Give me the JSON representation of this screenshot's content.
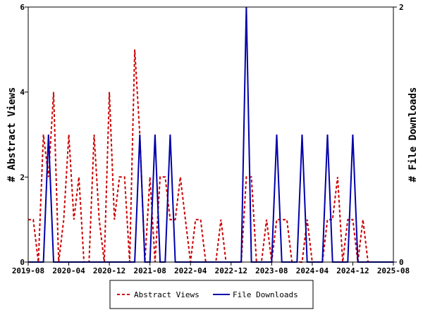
{
  "chart_data": {
    "type": "line",
    "title": "",
    "x_ticks": [
      "2019-08",
      "2020-04",
      "2020-12",
      "2021-08",
      "2022-04",
      "2022-12",
      "2023-08",
      "2024-04",
      "2024-12",
      "2025-08"
    ],
    "x_range": [
      "2019-08",
      "2025-08"
    ],
    "y_left": {
      "label": "# Abstract Views",
      "ticks": [
        "0",
        "2",
        "4",
        "6"
      ],
      "range": [
        0,
        6
      ]
    },
    "y_right": {
      "label": "# File Downloads",
      "ticks": [
        "0",
        "2"
      ],
      "range": [
        0,
        2
      ]
    },
    "grid": false,
    "legend": {
      "position": "bottom-center",
      "entries": [
        "Abstract Views",
        "File Downloads"
      ]
    },
    "colors": {
      "abstract_views": "#cc0000",
      "file_downloads": "#0000aa"
    },
    "series": [
      {
        "name": "Abstract Views",
        "axis": "left",
        "style": "dashed",
        "color": "#cc0000",
        "points": [
          [
            "2019-08",
            1
          ],
          [
            "2019-09",
            1
          ],
          [
            "2019-10",
            0
          ],
          [
            "2019-11",
            3
          ],
          [
            "2019-12",
            2
          ],
          [
            "2020-01",
            4
          ],
          [
            "2020-02",
            0
          ],
          [
            "2020-03",
            1
          ],
          [
            "2020-04",
            3
          ],
          [
            "2020-05",
            1
          ],
          [
            "2020-06",
            2
          ],
          [
            "2020-07",
            0
          ],
          [
            "2020-08",
            0
          ],
          [
            "2020-09",
            3
          ],
          [
            "2020-10",
            1
          ],
          [
            "2020-11",
            0
          ],
          [
            "2020-12",
            4
          ],
          [
            "2021-01",
            1
          ],
          [
            "2021-02",
            2
          ],
          [
            "2021-03",
            2
          ],
          [
            "2021-04",
            0
          ],
          [
            "2021-05",
            5
          ],
          [
            "2021-06",
            3
          ],
          [
            "2021-07",
            0
          ],
          [
            "2021-08",
            2
          ],
          [
            "2021-09",
            0
          ],
          [
            "2021-10",
            2
          ],
          [
            "2021-11",
            2
          ],
          [
            "2021-12",
            1
          ],
          [
            "2022-01",
            1
          ],
          [
            "2022-02",
            2
          ],
          [
            "2022-03",
            1
          ],
          [
            "2022-04",
            0
          ],
          [
            "2022-05",
            1
          ],
          [
            "2022-06",
            1
          ],
          [
            "2022-07",
            0
          ],
          [
            "2022-08",
            0
          ],
          [
            "2022-09",
            0
          ],
          [
            "2022-10",
            1
          ],
          [
            "2022-11",
            0
          ],
          [
            "2022-12",
            0
          ],
          [
            "2023-01",
            0
          ],
          [
            "2023-02",
            0
          ],
          [
            "2023-03",
            2
          ],
          [
            "2023-04",
            2
          ],
          [
            "2023-05",
            0
          ],
          [
            "2023-06",
            0
          ],
          [
            "2023-07",
            1
          ],
          [
            "2023-08",
            0
          ],
          [
            "2023-09",
            1
          ],
          [
            "2023-10",
            1
          ],
          [
            "2023-11",
            1
          ],
          [
            "2023-12",
            0
          ],
          [
            "2024-01",
            0
          ],
          [
            "2024-02",
            0
          ],
          [
            "2024-03",
            1
          ],
          [
            "2024-04",
            0
          ],
          [
            "2024-05",
            0
          ],
          [
            "2024-06",
            0
          ],
          [
            "2024-07",
            1
          ],
          [
            "2024-08",
            1
          ],
          [
            "2024-09",
            2
          ],
          [
            "2024-10",
            0
          ],
          [
            "2024-11",
            1
          ],
          [
            "2024-12",
            1
          ],
          [
            "2025-01",
            0
          ],
          [
            "2025-02",
            1
          ],
          [
            "2025-03",
            0
          ],
          [
            "2025-04",
            0
          ],
          [
            "2025-05",
            0
          ],
          [
            "2025-06",
            0
          ],
          [
            "2025-07",
            0
          ],
          [
            "2025-08",
            0
          ]
        ]
      },
      {
        "name": "File Downloads",
        "axis": "right",
        "style": "solid",
        "color": "#0000aa",
        "points": [
          [
            "2019-08",
            0
          ],
          [
            "2019-09",
            0
          ],
          [
            "2019-10",
            0
          ],
          [
            "2019-11",
            0
          ],
          [
            "2019-12",
            1
          ],
          [
            "2020-01",
            0
          ],
          [
            "2020-02",
            0
          ],
          [
            "2020-03",
            0
          ],
          [
            "2020-04",
            0
          ],
          [
            "2020-05",
            0
          ],
          [
            "2020-06",
            0
          ],
          [
            "2020-07",
            0
          ],
          [
            "2020-08",
            0
          ],
          [
            "2020-09",
            0
          ],
          [
            "2020-10",
            0
          ],
          [
            "2020-11",
            0
          ],
          [
            "2020-12",
            0
          ],
          [
            "2021-01",
            0
          ],
          [
            "2021-02",
            0
          ],
          [
            "2021-03",
            0
          ],
          [
            "2021-04",
            0
          ],
          [
            "2021-05",
            0
          ],
          [
            "2021-06",
            1
          ],
          [
            "2021-07",
            0
          ],
          [
            "2021-08",
            0
          ],
          [
            "2021-09",
            1
          ],
          [
            "2021-10",
            0
          ],
          [
            "2021-11",
            0
          ],
          [
            "2021-12",
            1
          ],
          [
            "2022-01",
            0
          ],
          [
            "2022-02",
            0
          ],
          [
            "2022-03",
            0
          ],
          [
            "2022-04",
            0
          ],
          [
            "2022-05",
            0
          ],
          [
            "2022-06",
            0
          ],
          [
            "2022-07",
            0
          ],
          [
            "2022-08",
            0
          ],
          [
            "2022-09",
            0
          ],
          [
            "2022-10",
            0
          ],
          [
            "2022-11",
            0
          ],
          [
            "2022-12",
            0
          ],
          [
            "2023-01",
            0
          ],
          [
            "2023-02",
            0
          ],
          [
            "2023-03",
            2
          ],
          [
            "2023-04",
            0
          ],
          [
            "2023-05",
            0
          ],
          [
            "2023-06",
            0
          ],
          [
            "2023-07",
            0
          ],
          [
            "2023-08",
            0
          ],
          [
            "2023-09",
            1
          ],
          [
            "2023-10",
            0
          ],
          [
            "2023-11",
            0
          ],
          [
            "2023-12",
            0
          ],
          [
            "2024-01",
            0
          ],
          [
            "2024-02",
            1
          ],
          [
            "2024-03",
            0
          ],
          [
            "2024-04",
            0
          ],
          [
            "2024-05",
            0
          ],
          [
            "2024-06",
            0
          ],
          [
            "2024-07",
            1
          ],
          [
            "2024-08",
            0
          ],
          [
            "2024-09",
            0
          ],
          [
            "2024-10",
            0
          ],
          [
            "2024-11",
            0
          ],
          [
            "2024-12",
            1
          ],
          [
            "2025-01",
            0
          ],
          [
            "2025-02",
            0
          ],
          [
            "2025-03",
            0
          ],
          [
            "2025-04",
            0
          ],
          [
            "2025-05",
            0
          ],
          [
            "2025-06",
            0
          ],
          [
            "2025-07",
            0
          ],
          [
            "2025-08",
            0
          ]
        ]
      }
    ]
  }
}
